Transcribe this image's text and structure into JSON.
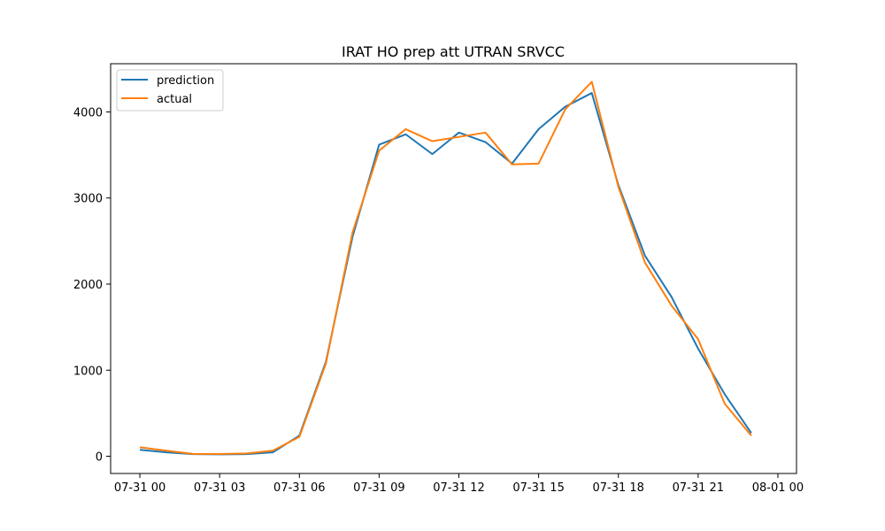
{
  "chart_data": {
    "type": "line",
    "title": "IRAT HO prep att UTRAN SRVCC",
    "xlabel": "",
    "ylabel": "",
    "x_hours": [
      0,
      1,
      2,
      3,
      4,
      5,
      6,
      7,
      8,
      9,
      10,
      11,
      12,
      13,
      14,
      15,
      16,
      17,
      18,
      19,
      20,
      21,
      22,
      23
    ],
    "xlim": [
      -1.1,
      24.7
    ],
    "ylim": [
      -200,
      4560
    ],
    "x_ticks": [
      {
        "value": 0,
        "label": "07-31 00"
      },
      {
        "value": 3,
        "label": "07-31 03"
      },
      {
        "value": 6,
        "label": "07-31 06"
      },
      {
        "value": 9,
        "label": "07-31 09"
      },
      {
        "value": 12,
        "label": "07-31 12"
      },
      {
        "value": 15,
        "label": "07-31 15"
      },
      {
        "value": 18,
        "label": "07-31 18"
      },
      {
        "value": 21,
        "label": "07-31 21"
      },
      {
        "value": 24,
        "label": "08-01 00"
      }
    ],
    "y_ticks": [
      {
        "value": 0,
        "label": "0"
      },
      {
        "value": 1000,
        "label": "1000"
      },
      {
        "value": 2000,
        "label": "2000"
      },
      {
        "value": 3000,
        "label": "3000"
      },
      {
        "value": 4000,
        "label": "4000"
      }
    ],
    "grid": false,
    "legend_position": "top-left",
    "series": [
      {
        "name": "prediction",
        "color": "#1f77b4",
        "values": [
          75,
          45,
          25,
          22,
          25,
          45,
          240,
          1100,
          2550,
          3620,
          3740,
          3510,
          3760,
          3650,
          3400,
          3800,
          4060,
          4220,
          3150,
          2330,
          1850,
          1250,
          720,
          270
        ]
      },
      {
        "name": "actual",
        "color": "#ff7f0e",
        "values": [
          105,
          65,
          28,
          26,
          32,
          65,
          225,
          1080,
          2600,
          3550,
          3800,
          3660,
          3710,
          3760,
          3390,
          3400,
          4030,
          4350,
          3130,
          2250,
          1750,
          1360,
          610,
          240
        ]
      }
    ]
  }
}
